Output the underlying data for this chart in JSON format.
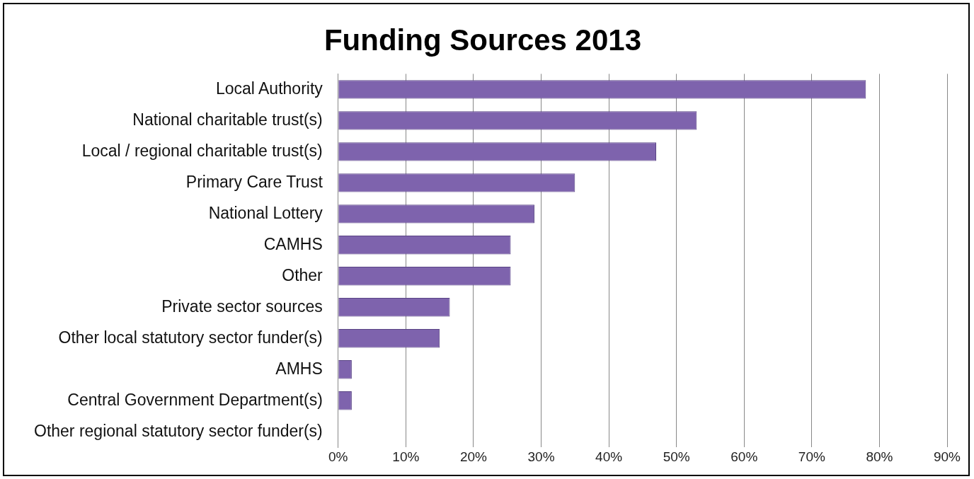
{
  "chart_data": {
    "type": "bar",
    "orientation": "horizontal",
    "title": "Funding Sources 2013",
    "categories": [
      "Local Authority",
      "National charitable trust(s)",
      "Local / regional charitable trust(s)",
      "Primary Care Trust",
      "National Lottery",
      "CAMHS",
      "Other",
      "Private sector sources",
      "Other local statutory sector funder(s)",
      "AMHS",
      "Central Government Department(s)",
      "Other regional statutory sector funder(s)"
    ],
    "values": [
      78,
      53,
      47,
      35,
      29,
      25.5,
      25.5,
      16.5,
      15,
      2,
      2,
      0
    ],
    "color": "#7e63ad",
    "xlim": [
      0,
      90
    ],
    "xticks": [
      {
        "value": 0,
        "label": "0%"
      },
      {
        "value": 10,
        "label": "10%"
      },
      {
        "value": 20,
        "label": "20%"
      },
      {
        "value": 30,
        "label": "30%"
      },
      {
        "value": 40,
        "label": "40%"
      },
      {
        "value": 50,
        "label": "50%"
      },
      {
        "value": 60,
        "label": "60%"
      },
      {
        "value": 70,
        "label": "70%"
      },
      {
        "value": 80,
        "label": "80%"
      },
      {
        "value": 90,
        "label": "90%"
      }
    ],
    "grid": "x",
    "legend": false
  }
}
